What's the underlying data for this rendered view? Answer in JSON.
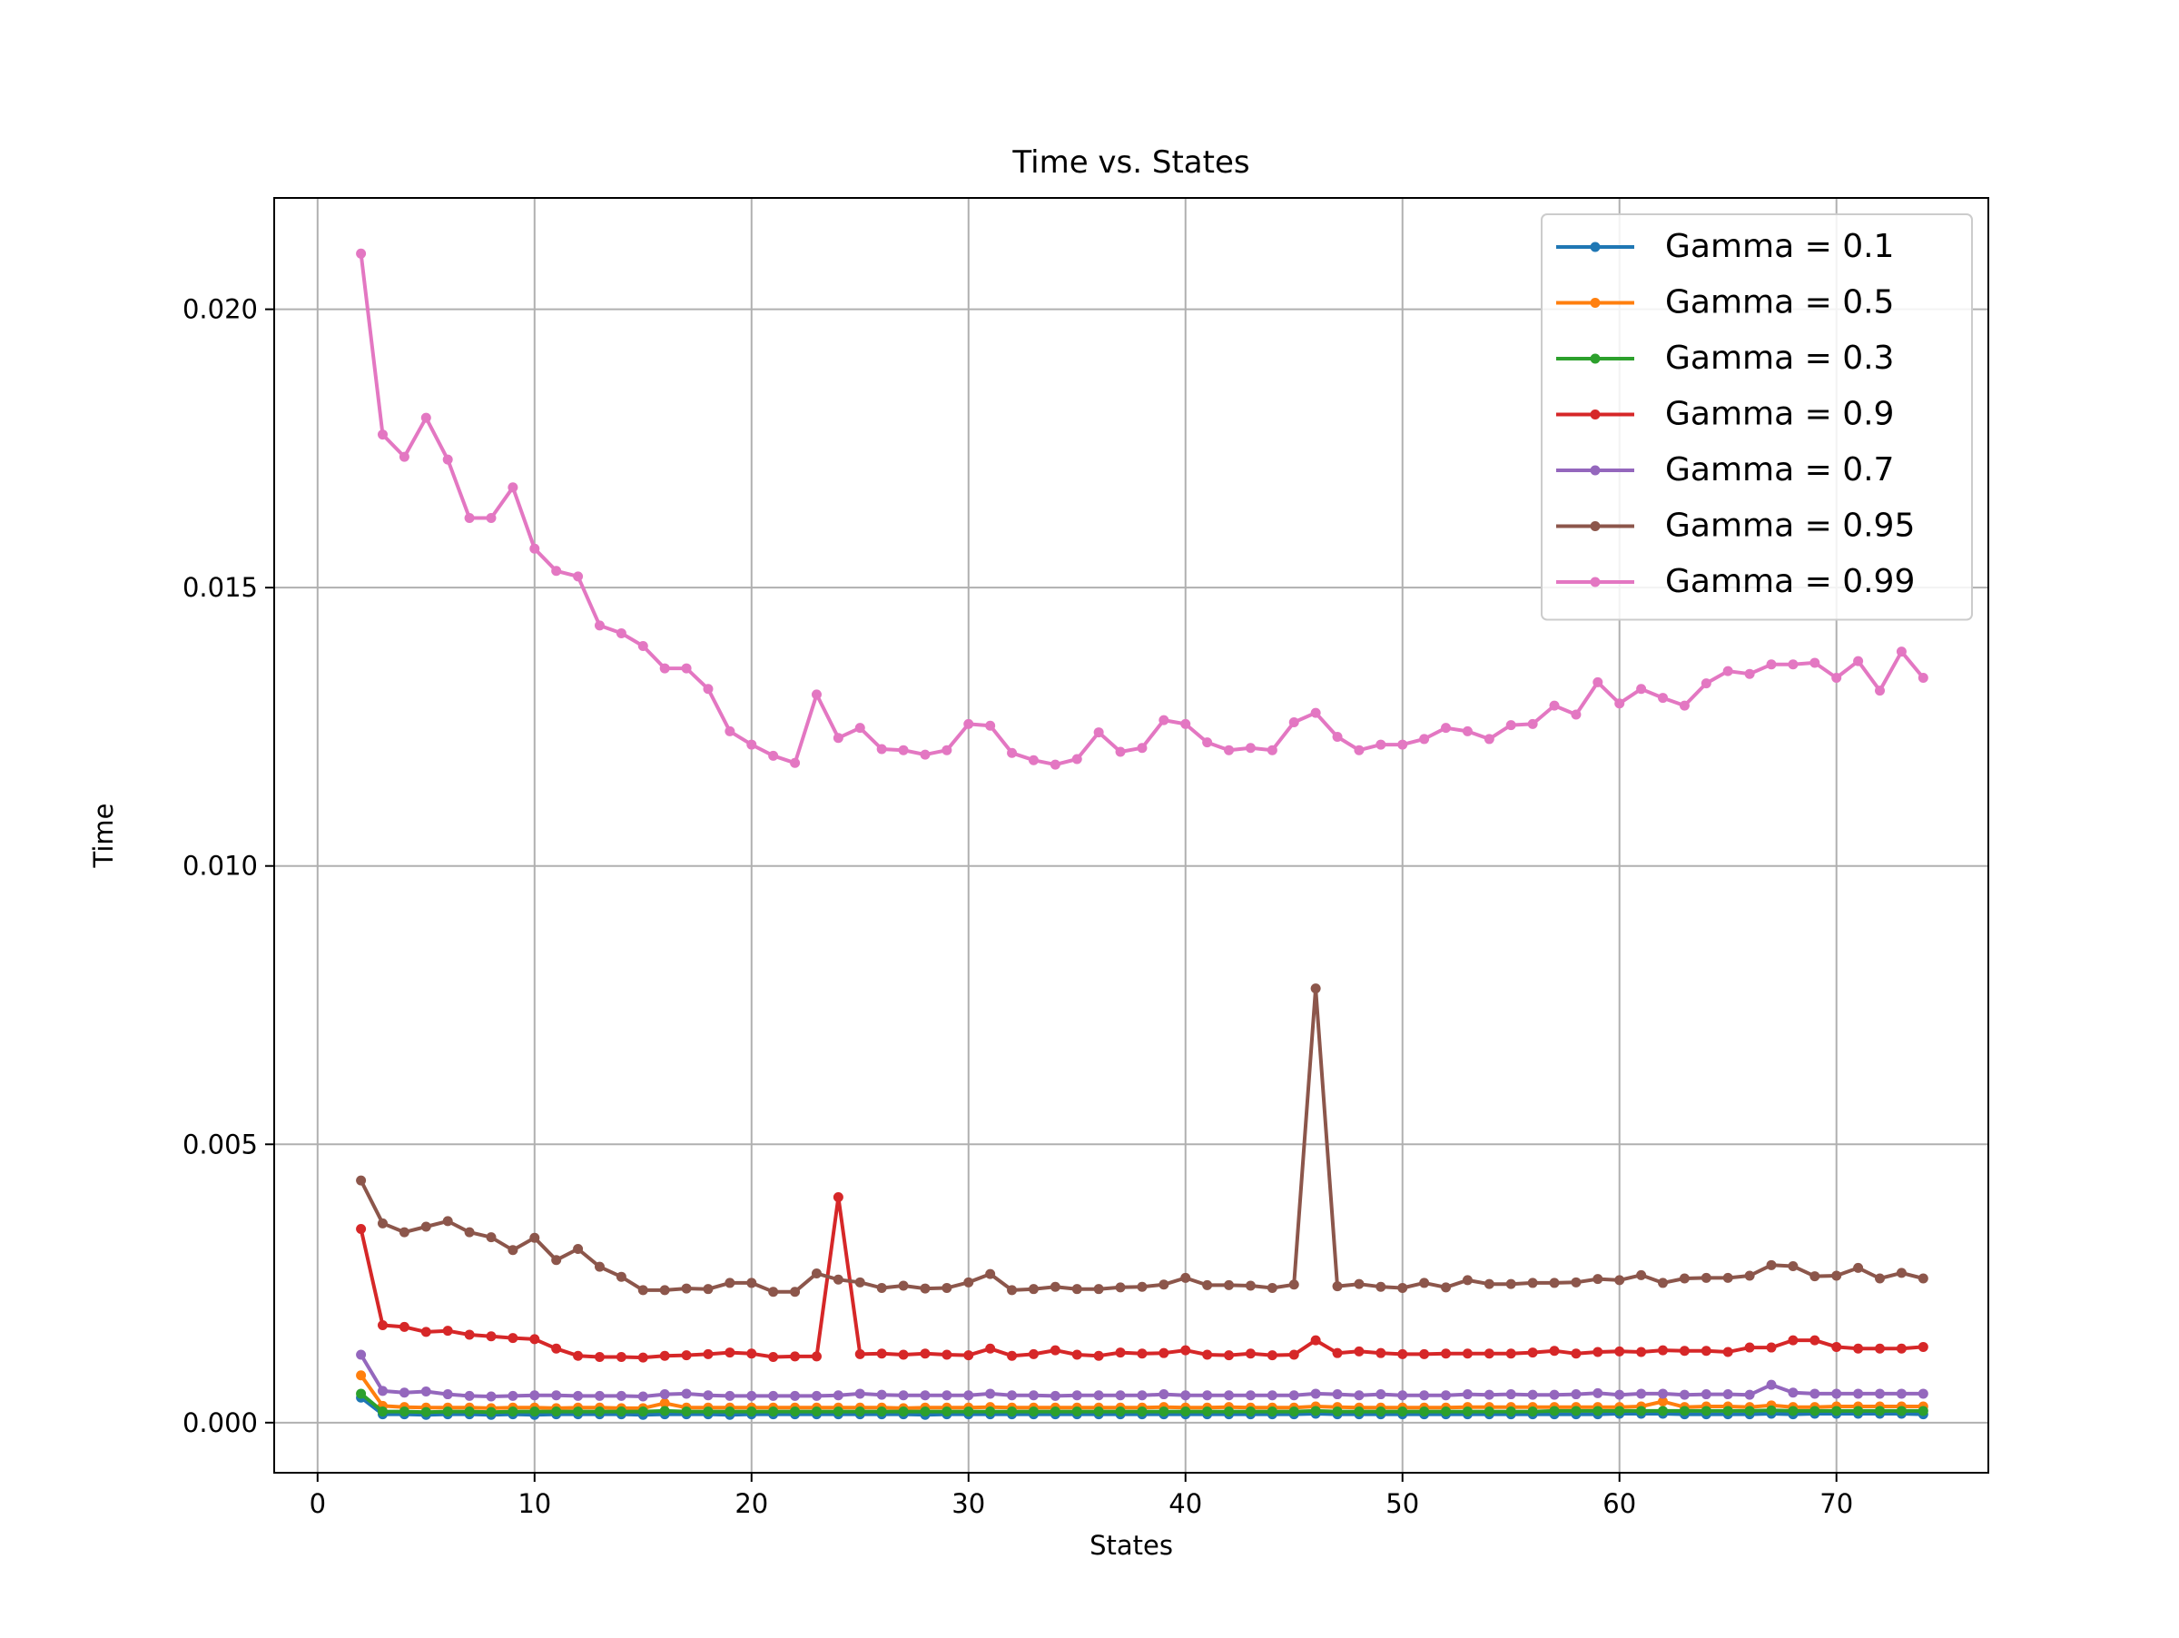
{
  "chart_data": {
    "type": "line",
    "title": "Time vs. States",
    "xlabel": "States",
    "ylabel": "Time",
    "xlim": [
      -2,
      77
    ],
    "ylim": [
      -0.0009,
      0.022
    ],
    "xticks": [
      0,
      10,
      20,
      30,
      40,
      50,
      60,
      70
    ],
    "xtick_labels": [
      "0",
      "10",
      "20",
      "30",
      "40",
      "50",
      "60",
      "70"
    ],
    "yticks": [
      0,
      0.005,
      0.01,
      0.015,
      0.02
    ],
    "ytick_labels": [
      "0.000",
      "0.005",
      "0.010",
      "0.015",
      "0.020"
    ],
    "grid": true,
    "legend_position": "top-right",
    "x": [
      2,
      3,
      4,
      5,
      6,
      7,
      8,
      9,
      10,
      11,
      12,
      13,
      14,
      15,
      16,
      17,
      18,
      19,
      20,
      21,
      22,
      23,
      24,
      25,
      26,
      27,
      28,
      29,
      30,
      31,
      32,
      33,
      34,
      35,
      36,
      37,
      38,
      39,
      40,
      41,
      42,
      43,
      44,
      45,
      46,
      47,
      48,
      49,
      50,
      51,
      52,
      53,
      54,
      55,
      56,
      57,
      58,
      59,
      60,
      61,
      62,
      63,
      64,
      65,
      66,
      67,
      68,
      69,
      70,
      71,
      72,
      73,
      74
    ],
    "series": [
      {
        "name": "Gamma = 0.1",
        "color": "#1f77b4",
        "values": [
          0.00045,
          0.00015,
          0.00015,
          0.00014,
          0.00015,
          0.00015,
          0.00014,
          0.00015,
          0.00014,
          0.00015,
          0.00015,
          0.00015,
          0.00015,
          0.00014,
          0.00015,
          0.00015,
          0.00015,
          0.00014,
          0.00015,
          0.00015,
          0.00015,
          0.00015,
          0.00015,
          0.00015,
          0.00015,
          0.00015,
          0.00014,
          0.00015,
          0.00015,
          0.00015,
          0.00015,
          0.00015,
          0.00015,
          0.00015,
          0.00015,
          0.00015,
          0.00015,
          0.00015,
          0.00015,
          0.00015,
          0.00015,
          0.00015,
          0.00015,
          0.00015,
          0.00016,
          0.00015,
          0.00015,
          0.00015,
          0.00015,
          0.00015,
          0.00015,
          0.00015,
          0.00015,
          0.00015,
          0.00015,
          0.00015,
          0.00015,
          0.00015,
          0.00016,
          0.00016,
          0.00016,
          0.00015,
          0.00015,
          0.00015,
          0.00015,
          0.00016,
          0.00015,
          0.00016,
          0.00016,
          0.00016,
          0.00016,
          0.00016,
          0.00015
        ]
      },
      {
        "name": "Gamma = 0.5",
        "color": "#ff7f0e",
        "values": [
          0.00085,
          0.0003,
          0.00028,
          0.00027,
          0.00027,
          0.00027,
          0.00026,
          0.00027,
          0.00027,
          0.00026,
          0.00027,
          0.00027,
          0.00026,
          0.00026,
          0.00035,
          0.00027,
          0.00027,
          0.00027,
          0.00027,
          0.00027,
          0.00027,
          0.00027,
          0.00027,
          0.00027,
          0.00027,
          0.00026,
          0.00027,
          0.00027,
          0.00027,
          0.00028,
          0.00027,
          0.00027,
          0.00027,
          0.00027,
          0.00027,
          0.00027,
          0.00027,
          0.00028,
          0.00027,
          0.00027,
          0.00028,
          0.00027,
          0.00027,
          0.00027,
          0.00029,
          0.00028,
          0.00027,
          0.00027,
          0.00027,
          0.00027,
          0.00027,
          0.00028,
          0.00028,
          0.00028,
          0.00028,
          0.00028,
          0.00028,
          0.00028,
          0.00028,
          0.00029,
          0.00038,
          0.00028,
          0.00029,
          0.00029,
          0.00028,
          0.00031,
          0.00028,
          0.00028,
          0.00029,
          0.00029,
          0.00029,
          0.00029,
          0.00029
        ]
      },
      {
        "name": "Gamma = 0.3",
        "color": "#2ca02c",
        "values": [
          0.00052,
          0.0002,
          0.0002,
          0.00019,
          0.0002,
          0.0002,
          0.00019,
          0.0002,
          0.0002,
          0.0002,
          0.0002,
          0.0002,
          0.0002,
          0.0002,
          0.00021,
          0.0002,
          0.0002,
          0.0002,
          0.0002,
          0.0002,
          0.0002,
          0.0002,
          0.0002,
          0.0002,
          0.0002,
          0.0002,
          0.0002,
          0.0002,
          0.0002,
          0.0002,
          0.0002,
          0.0002,
          0.0002,
          0.0002,
          0.0002,
          0.0002,
          0.0002,
          0.0002,
          0.0002,
          0.0002,
          0.0002,
          0.0002,
          0.0002,
          0.0002,
          0.00021,
          0.0002,
          0.0002,
          0.0002,
          0.0002,
          0.0002,
          0.0002,
          0.0002,
          0.0002,
          0.0002,
          0.0002,
          0.00021,
          0.00021,
          0.00021,
          0.00021,
          0.00021,
          0.00021,
          0.00021,
          0.00021,
          0.00021,
          0.00021,
          0.00022,
          0.00021,
          0.00021,
          0.00021,
          0.00021,
          0.00021,
          0.00021,
          0.00021
        ]
      },
      {
        "name": "Gamma = 0.9",
        "color": "#d62728",
        "values": [
          0.00348,
          0.00175,
          0.00172,
          0.00163,
          0.00165,
          0.00158,
          0.00155,
          0.00152,
          0.0015,
          0.00133,
          0.0012,
          0.00118,
          0.00118,
          0.00117,
          0.0012,
          0.00121,
          0.00123,
          0.00126,
          0.00124,
          0.00118,
          0.00119,
          0.00119,
          0.00405,
          0.00123,
          0.00124,
          0.00122,
          0.00124,
          0.00122,
          0.00121,
          0.00133,
          0.0012,
          0.00123,
          0.0013,
          0.00122,
          0.0012,
          0.00126,
          0.00124,
          0.00125,
          0.0013,
          0.00122,
          0.00121,
          0.00124,
          0.00121,
          0.00122,
          0.00148,
          0.00125,
          0.00128,
          0.00125,
          0.00123,
          0.00123,
          0.00124,
          0.00124,
          0.00124,
          0.00124,
          0.00126,
          0.00129,
          0.00124,
          0.00127,
          0.00128,
          0.00127,
          0.0013,
          0.00129,
          0.00129,
          0.00127,
          0.00135,
          0.00135,
          0.00148,
          0.00148,
          0.00136,
          0.00133,
          0.00133,
          0.00133,
          0.00136
        ]
      },
      {
        "name": "Gamma = 0.7",
        "color": "#9467bd",
        "values": [
          0.00122,
          0.00057,
          0.00054,
          0.00056,
          0.00051,
          0.00048,
          0.00047,
          0.00048,
          0.00049,
          0.00049,
          0.00048,
          0.00048,
          0.00048,
          0.00047,
          0.00051,
          0.00052,
          0.00049,
          0.00048,
          0.00048,
          0.00048,
          0.00048,
          0.00048,
          0.00049,
          0.00052,
          0.0005,
          0.00049,
          0.00049,
          0.00049,
          0.00049,
          0.00052,
          0.00049,
          0.00049,
          0.00048,
          0.00049,
          0.00049,
          0.00049,
          0.00049,
          0.00051,
          0.00049,
          0.00049,
          0.00049,
          0.00049,
          0.00049,
          0.00049,
          0.00052,
          0.00051,
          0.00049,
          0.00051,
          0.00049,
          0.00049,
          0.00049,
          0.00051,
          0.0005,
          0.00051,
          0.0005,
          0.0005,
          0.00051,
          0.00053,
          0.0005,
          0.00052,
          0.00052,
          0.0005,
          0.00051,
          0.00051,
          0.0005,
          0.00068,
          0.00054,
          0.00052,
          0.00052,
          0.00052,
          0.00052,
          0.00052,
          0.00052
        ]
      },
      {
        "name": "Gamma = 0.95",
        "color": "#8c564b",
        "values": [
          0.00435,
          0.00358,
          0.00342,
          0.00352,
          0.00362,
          0.00342,
          0.00333,
          0.0031,
          0.00332,
          0.00292,
          0.00312,
          0.0028,
          0.00262,
          0.00238,
          0.00238,
          0.00241,
          0.0024,
          0.00251,
          0.00251,
          0.00235,
          0.00235,
          0.00268,
          0.00257,
          0.00252,
          0.00242,
          0.00246,
          0.00241,
          0.00242,
          0.00252,
          0.00267,
          0.00238,
          0.0024,
          0.00244,
          0.0024,
          0.0024,
          0.00243,
          0.00244,
          0.00248,
          0.0026,
          0.00247,
          0.00247,
          0.00246,
          0.00242,
          0.00248,
          0.0078,
          0.00245,
          0.00249,
          0.00244,
          0.00242,
          0.00251,
          0.00243,
          0.00256,
          0.00249,
          0.00249,
          0.00251,
          0.00251,
          0.00252,
          0.00258,
          0.00256,
          0.00265,
          0.00251,
          0.00259,
          0.0026,
          0.0026,
          0.00264,
          0.00283,
          0.00281,
          0.00263,
          0.00264,
          0.00278,
          0.00259,
          0.00269,
          0.00259
        ]
      },
      {
        "name": "Gamma = 0.99",
        "color": "#e377c2",
        "values": [
          0.021,
          0.01775,
          0.01735,
          0.01805,
          0.0173,
          0.01625,
          0.01625,
          0.0168,
          0.0157,
          0.0153,
          0.0152,
          0.01432,
          0.01418,
          0.01395,
          0.01355,
          0.01355,
          0.01318,
          0.01242,
          0.01218,
          0.01198,
          0.01185,
          0.01308,
          0.0123,
          0.01248,
          0.0121,
          0.01208,
          0.012,
          0.01208,
          0.01255,
          0.01252,
          0.01203,
          0.0119,
          0.01182,
          0.01192,
          0.0124,
          0.01205,
          0.01212,
          0.01262,
          0.01255,
          0.01222,
          0.01208,
          0.01212,
          0.01208,
          0.01258,
          0.01275,
          0.01232,
          0.01208,
          0.01218,
          0.01218,
          0.01228,
          0.01248,
          0.01242,
          0.01228,
          0.01253,
          0.01255,
          0.01288,
          0.01272,
          0.0133,
          0.01292,
          0.01318,
          0.01302,
          0.01288,
          0.01328,
          0.0135,
          0.01345,
          0.01362,
          0.01362,
          0.01365,
          0.01338,
          0.01368,
          0.01315,
          0.01385,
          0.01338
        ]
      }
    ]
  }
}
